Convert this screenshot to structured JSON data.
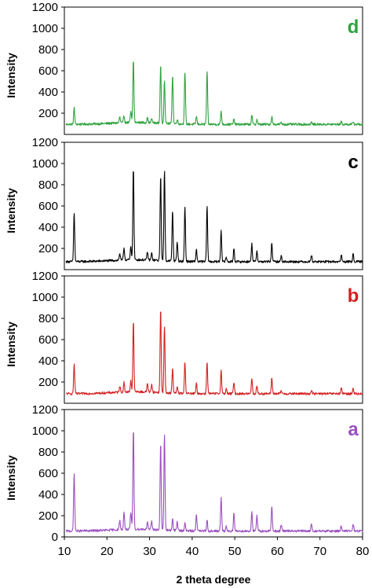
{
  "chart_data": {
    "type": "line",
    "xlabel": "2 theta degree",
    "xlim": [
      10,
      80
    ],
    "x_ticks": [
      "10",
      "20",
      "30",
      "40",
      "50",
      "60",
      "70",
      "80"
    ],
    "grid": false,
    "panels": [
      {
        "letter": "d",
        "color": "#2ea33e",
        "ylabel": "Intensity",
        "ylim": [
          0,
          1200
        ],
        "y_ticks": [
          "200",
          "400",
          "600",
          "800",
          "1000",
          "1200"
        ],
        "baseline": 95,
        "peaks": [
          [
            12.3,
            250
          ],
          [
            23.0,
            150
          ],
          [
            24.0,
            160
          ],
          [
            25.6,
            200
          ],
          [
            26.2,
            690
          ],
          [
            29.5,
            140
          ],
          [
            30.5,
            135
          ],
          [
            32.6,
            645
          ],
          [
            33.5,
            510
          ],
          [
            35.4,
            560
          ],
          [
            36.5,
            140
          ],
          [
            38.3,
            590
          ],
          [
            41.0,
            170
          ],
          [
            43.5,
            590
          ],
          [
            46.8,
            220
          ],
          [
            49.8,
            140
          ],
          [
            54.0,
            180
          ],
          [
            55.2,
            140
          ],
          [
            58.7,
            170
          ],
          [
            60.9,
            110
          ],
          [
            68.0,
            115
          ],
          [
            75.0,
            120
          ],
          [
            77.8,
            120
          ]
        ]
      },
      {
        "letter": "c",
        "color": "#000000",
        "ylabel": "Intensity",
        "ylim": [
          0,
          1200
        ],
        "y_ticks": [
          "200",
          "400",
          "600",
          "800",
          "1000",
          "1200"
        ],
        "baseline": 75,
        "peaks": [
          [
            12.3,
            540
          ],
          [
            23.0,
            140
          ],
          [
            24.0,
            190
          ],
          [
            25.6,
            200
          ],
          [
            26.2,
            950
          ],
          [
            29.5,
            150
          ],
          [
            30.5,
            140
          ],
          [
            32.6,
            880
          ],
          [
            33.5,
            935
          ],
          [
            35.4,
            550
          ],
          [
            36.5,
            260
          ],
          [
            38.3,
            590
          ],
          [
            41.0,
            190
          ],
          [
            43.5,
            590
          ],
          [
            46.8,
            370
          ],
          [
            48.0,
            120
          ],
          [
            49.8,
            200
          ],
          [
            54.0,
            245
          ],
          [
            55.2,
            180
          ],
          [
            58.7,
            250
          ],
          [
            60.9,
            130
          ],
          [
            68.0,
            140
          ],
          [
            75.0,
            140
          ],
          [
            77.8,
            145
          ]
        ]
      },
      {
        "letter": "b",
        "color": "#d42020",
        "ylabel": "Intensity",
        "ylim": [
          0,
          1200
        ],
        "y_ticks": [
          "200",
          "400",
          "600",
          "800",
          "1000",
          "1200"
        ],
        "baseline": 90,
        "peaks": [
          [
            12.3,
            370
          ],
          [
            23.0,
            150
          ],
          [
            24.0,
            180
          ],
          [
            25.6,
            200
          ],
          [
            26.2,
            760
          ],
          [
            29.5,
            175
          ],
          [
            30.5,
            170
          ],
          [
            32.6,
            880
          ],
          [
            33.5,
            720
          ],
          [
            35.4,
            320
          ],
          [
            36.5,
            150
          ],
          [
            38.3,
            390
          ],
          [
            41.0,
            185
          ],
          [
            43.5,
            390
          ],
          [
            46.8,
            310
          ],
          [
            48.0,
            140
          ],
          [
            49.8,
            200
          ],
          [
            54.0,
            240
          ],
          [
            55.2,
            170
          ],
          [
            58.7,
            240
          ],
          [
            60.9,
            120
          ],
          [
            68.0,
            125
          ],
          [
            75.0,
            140
          ],
          [
            77.8,
            140
          ]
        ]
      },
      {
        "letter": "a",
        "color": "#9b4fc0",
        "ylabel": "Intensity",
        "ylim": [
          0,
          1200
        ],
        "y_ticks": [
          "0",
          "200",
          "400",
          "600",
          "800",
          "1000",
          "1200"
        ],
        "baseline": 55,
        "peaks": [
          [
            12.3,
            610
          ],
          [
            23.0,
            140
          ],
          [
            24.0,
            220
          ],
          [
            25.6,
            210
          ],
          [
            26.2,
            1010
          ],
          [
            29.5,
            130
          ],
          [
            30.5,
            130
          ],
          [
            32.6,
            880
          ],
          [
            33.5,
            960
          ],
          [
            35.4,
            165
          ],
          [
            36.5,
            140
          ],
          [
            38.3,
            130
          ],
          [
            41.0,
            220
          ],
          [
            43.5,
            160
          ],
          [
            46.8,
            370
          ],
          [
            48.0,
            100
          ],
          [
            49.8,
            220
          ],
          [
            54.0,
            240
          ],
          [
            55.2,
            200
          ],
          [
            58.7,
            290
          ],
          [
            60.9,
            110
          ],
          [
            68.0,
            120
          ],
          [
            75.0,
            110
          ],
          [
            77.8,
            120
          ]
        ]
      }
    ]
  }
}
